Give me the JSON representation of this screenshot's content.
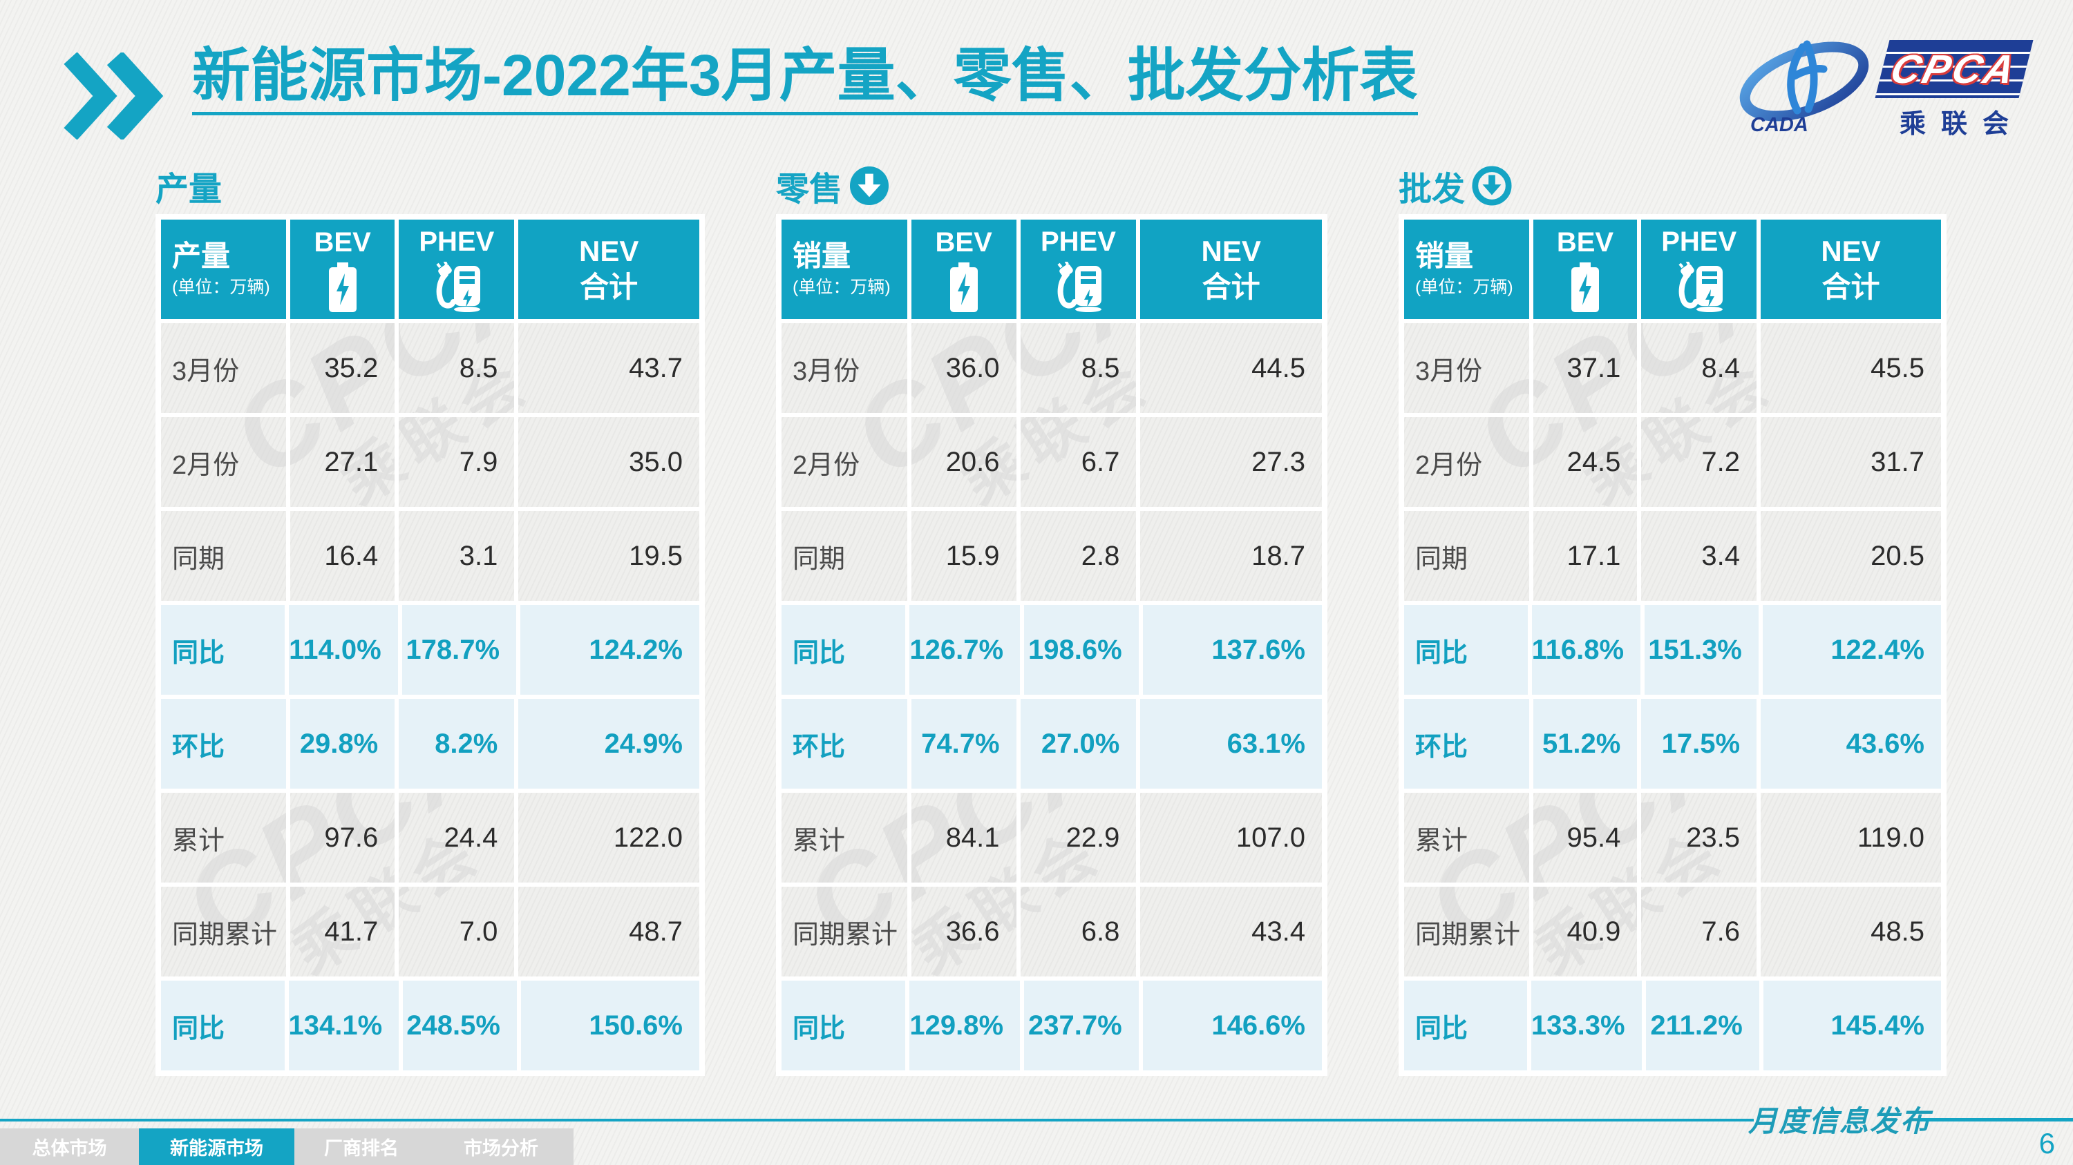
{
  "header": {
    "title_prefix": "新能源市场",
    "title_rest": "-2022年3月产量、零售、批发分析表"
  },
  "logo": {
    "cpca": "CPCA",
    "cada": "CADA",
    "association": "乘联会"
  },
  "watermark": {
    "line1": "CPCA",
    "line2": "乘联会"
  },
  "sections": [
    {
      "title": "产量",
      "arrow": "none",
      "table": {
        "label": "产量",
        "unit": "(单位：万辆)",
        "col_bev": "BEV",
        "col_phev": "PHEV",
        "col_nev_line1": "NEV",
        "col_nev_line2": "合计",
        "rows": [
          {
            "label": "3月份",
            "highlight": false,
            "values": [
              "35.2",
              "8.5",
              "43.7"
            ]
          },
          {
            "label": "2月份",
            "highlight": false,
            "values": [
              "27.1",
              "7.9",
              "35.0"
            ]
          },
          {
            "label": "同期",
            "highlight": false,
            "values": [
              "16.4",
              "3.1",
              "19.5"
            ]
          },
          {
            "label": "同比",
            "highlight": true,
            "values": [
              "114.0%",
              "178.7%",
              "124.2%"
            ]
          },
          {
            "label": "环比",
            "highlight": true,
            "values": [
              "29.8%",
              "8.2%",
              "24.9%"
            ]
          },
          {
            "label": "累计",
            "highlight": false,
            "values": [
              "97.6",
              "24.4",
              "122.0"
            ]
          },
          {
            "label": "同期累计",
            "highlight": false,
            "values": [
              "41.7",
              "7.0",
              "48.7"
            ]
          },
          {
            "label": "同比",
            "highlight": true,
            "values": [
              "134.1%",
              "248.5%",
              "150.6%"
            ]
          }
        ]
      }
    },
    {
      "title": "零售",
      "arrow": "filled",
      "table": {
        "label": "销量",
        "unit": "(单位：万辆)",
        "col_bev": "BEV",
        "col_phev": "PHEV",
        "col_nev_line1": "NEV",
        "col_nev_line2": "合计",
        "rows": [
          {
            "label": "3月份",
            "highlight": false,
            "values": [
              "36.0",
              "8.5",
              "44.5"
            ]
          },
          {
            "label": "2月份",
            "highlight": false,
            "values": [
              "20.6",
              "6.7",
              "27.3"
            ]
          },
          {
            "label": "同期",
            "highlight": false,
            "values": [
              "15.9",
              "2.8",
              "18.7"
            ]
          },
          {
            "label": "同比",
            "highlight": true,
            "values": [
              "126.7%",
              "198.6%",
              "137.6%"
            ]
          },
          {
            "label": "环比",
            "highlight": true,
            "values": [
              "74.7%",
              "27.0%",
              "63.1%"
            ]
          },
          {
            "label": "累计",
            "highlight": false,
            "values": [
              "84.1",
              "22.9",
              "107.0"
            ]
          },
          {
            "label": "同期累计",
            "highlight": false,
            "values": [
              "36.6",
              "6.8",
              "43.4"
            ]
          },
          {
            "label": "同比",
            "highlight": true,
            "values": [
              "129.8%",
              "237.7%",
              "146.6%"
            ]
          }
        ]
      }
    },
    {
      "title": "批发",
      "arrow": "ring",
      "table": {
        "label": "销量",
        "unit": "(单位：万辆)",
        "col_bev": "BEV",
        "col_phev": "PHEV",
        "col_nev_line1": "NEV",
        "col_nev_line2": "合计",
        "rows": [
          {
            "label": "3月份",
            "highlight": false,
            "values": [
              "37.1",
              "8.4",
              "45.5"
            ]
          },
          {
            "label": "2月份",
            "highlight": false,
            "values": [
              "24.5",
              "7.2",
              "31.7"
            ]
          },
          {
            "label": "同期",
            "highlight": false,
            "values": [
              "17.1",
              "3.4",
              "20.5"
            ]
          },
          {
            "label": "同比",
            "highlight": true,
            "values": [
              "116.8%",
              "151.3%",
              "122.4%"
            ]
          },
          {
            "label": "环比",
            "highlight": true,
            "values": [
              "51.2%",
              "17.5%",
              "43.6%"
            ]
          },
          {
            "label": "累计",
            "highlight": false,
            "values": [
              "95.4",
              "23.5",
              "119.0"
            ]
          },
          {
            "label": "同期累计",
            "highlight": false,
            "values": [
              "40.9",
              "7.6",
              "48.5"
            ]
          },
          {
            "label": "同比",
            "highlight": true,
            "values": [
              "133.3%",
              "211.2%",
              "145.4%"
            ]
          }
        ]
      }
    }
  ],
  "footer": {
    "stamp": "月度信息发布",
    "page": "6"
  },
  "nav": {
    "tabs": [
      {
        "label": "总体市场",
        "active": false
      },
      {
        "label": "新能源市场",
        "active": true
      },
      {
        "label": "厂商排名",
        "active": false
      },
      {
        "label": "市场分析",
        "active": false
      }
    ]
  }
}
